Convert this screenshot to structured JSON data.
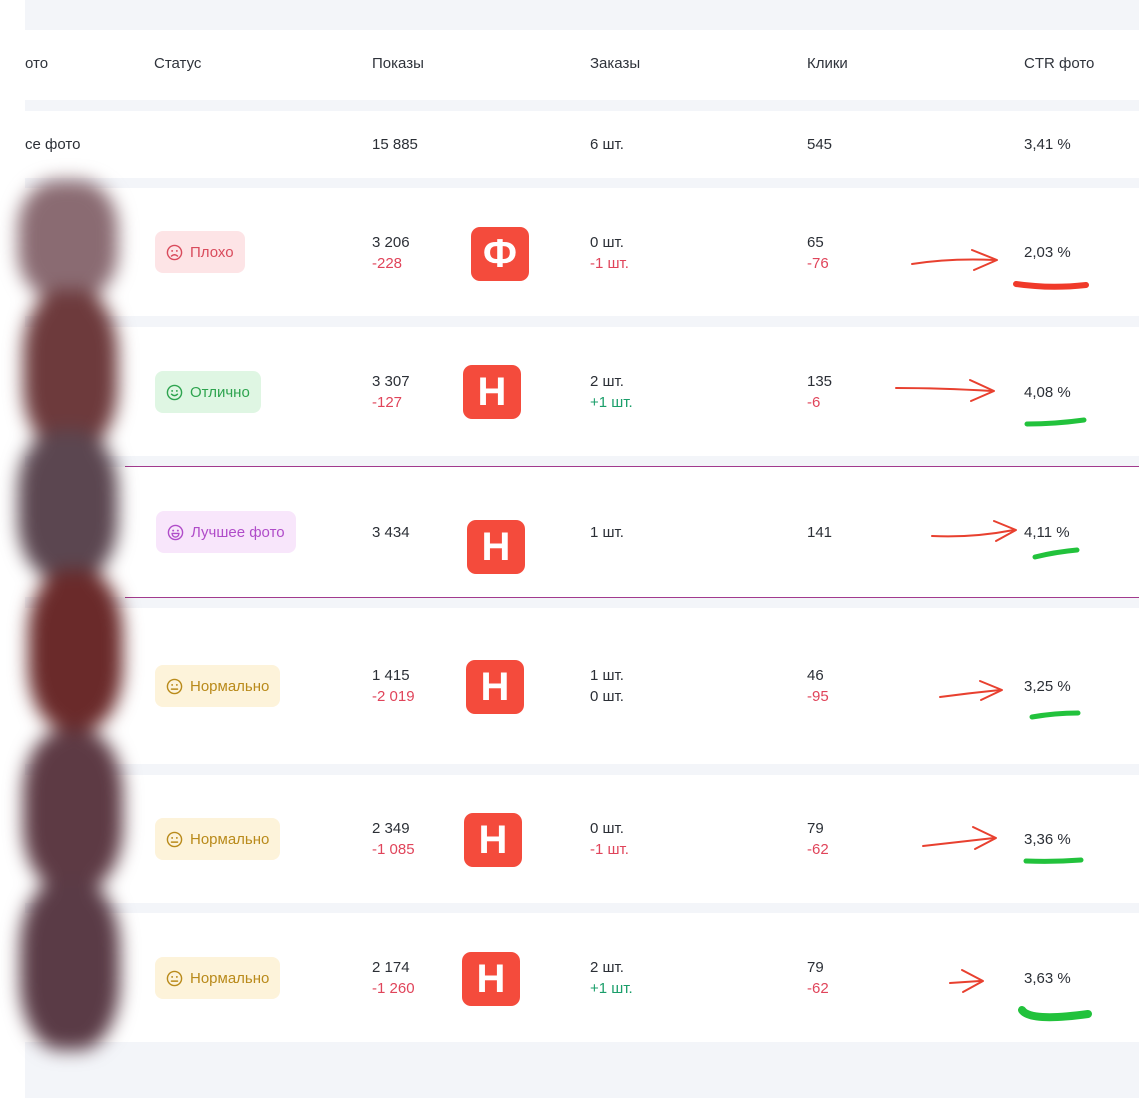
{
  "header": {
    "photo": "ото",
    "status": "Статус",
    "shows": "Показы",
    "orders": "Заказы",
    "clicks": "Клики",
    "ctr": "CTR фото"
  },
  "summary": {
    "label": "се фото",
    "shows": "15 885",
    "orders": "6 шт.",
    "clicks": "545",
    "ctr": "3,41 %"
  },
  "rows": [
    {
      "status": "Плохо",
      "status_kind": "bad",
      "shows": "3 206",
      "shows_delta": "-228",
      "tag": "Ф",
      "orders": "0 шт.",
      "orders_delta": "-1 шт.",
      "clicks": "65",
      "clicks_delta": "-76",
      "ctr": "2,03 %"
    },
    {
      "status": "Отлично",
      "status_kind": "good",
      "shows": "3 307",
      "shows_delta": "-127",
      "tag": "Н",
      "orders": "2 шт.",
      "orders_delta": "+1 шт.",
      "clicks": "135",
      "clicks_delta": "-6",
      "ctr": "4,08 %"
    },
    {
      "status": "Лучшее фото",
      "status_kind": "best",
      "shows": "3 434",
      "tag": "Н",
      "orders": "1 шт.",
      "clicks": "141",
      "ctr": "4,11 %"
    },
    {
      "status": "Нормально",
      "status_kind": "norm",
      "shows": "1 415",
      "shows_delta": "-2 019",
      "tag": "Н",
      "orders": "1 шт.",
      "orders_delta": "0 шт.",
      "clicks": "46",
      "clicks_delta": "-95",
      "ctr": "3,25 %"
    },
    {
      "status": "Нормально",
      "status_kind": "norm",
      "shows": "2 349",
      "shows_delta": "-1 085",
      "tag": "Н",
      "orders": "0 шт.",
      "orders_delta": "-1 шт.",
      "clicks": "79",
      "clicks_delta": "-62",
      "ctr": "3,36 %"
    },
    {
      "status": "Нормально",
      "status_kind": "norm",
      "shows": "2 174",
      "shows_delta": "-1 260",
      "tag": "Н",
      "orders": "2 шт.",
      "orders_delta": "+1 шт.",
      "clicks": "79",
      "clicks_delta": "-62",
      "ctr": "3,63 %"
    }
  ],
  "colors": {
    "bad": "#d94b5c",
    "good": "#2ea44f",
    "best": "#b04cc9",
    "norm": "#b98a1a",
    "tag": "#f44b3c",
    "arrow": "#e8402f",
    "underline_red": "#f03a2a",
    "underline_green": "#22c23c"
  }
}
